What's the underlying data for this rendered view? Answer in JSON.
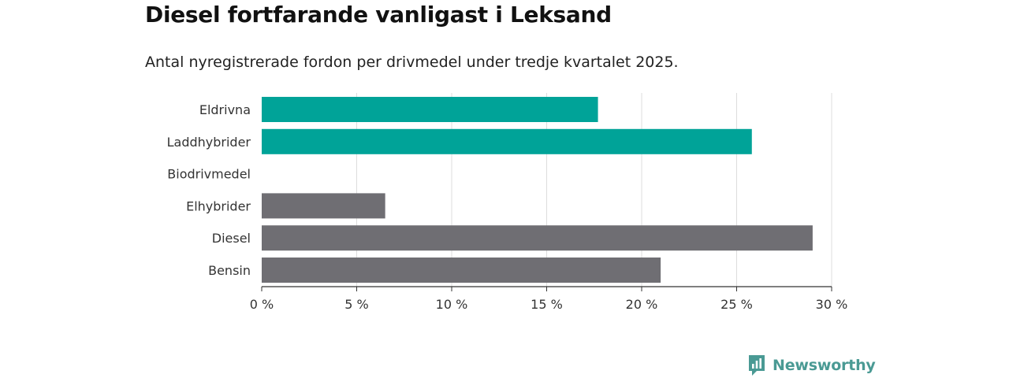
{
  "header": {
    "title": "Diesel fortfarande vanligast i Leksand",
    "subtitle": "Antal nyregistrerade fordon per drivmedel under tredje kvartalet 2025."
  },
  "chart_data": {
    "type": "bar",
    "orientation": "horizontal",
    "title": "Diesel fortfarande vanligast i Leksand",
    "subtitle": "Antal nyregistrerade fordon per drivmedel under tredje kvartalet 2025.",
    "categories": [
      "Eldrivna",
      "Laddhybrider",
      "Biodrivmedel",
      "Elhybrider",
      "Diesel",
      "Bensin"
    ],
    "values": [
      17.7,
      25.8,
      0,
      6.5,
      29.0,
      21.0
    ],
    "value_unit": "%",
    "colors": [
      "#00a398",
      "#00a398",
      "#6f6e73",
      "#6f6e73",
      "#6f6e73",
      "#6f6e73"
    ],
    "xlim": [
      0,
      30
    ],
    "xticks": [
      0,
      5,
      10,
      15,
      20,
      25,
      30
    ],
    "xtick_labels": [
      "0 %",
      "5 %",
      "10 %",
      "15 %",
      "20 %",
      "25 %",
      "30 %"
    ],
    "grid": true,
    "xlabel": "",
    "ylabel": ""
  },
  "branding": {
    "name": "Newsworthy",
    "icon": "newsworthy-logo-icon",
    "color": "#4a9a94"
  }
}
